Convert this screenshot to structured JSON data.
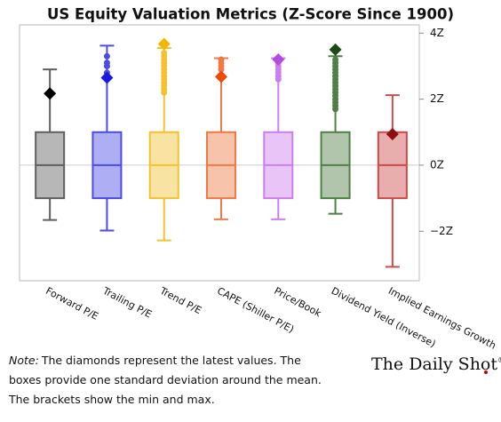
{
  "chart_data": {
    "type": "box",
    "title": "US Equity Valuation Metrics (Z-Score Since 1900)",
    "categories": [
      "Forward P/E",
      "Trailing P/E",
      "Trend P/E",
      "CAPE (Shiller P/E)",
      "Price/Book",
      "Dividend Yield (Inverse)",
      "Implied Earnings Growth"
    ],
    "ylim": [
      -3.5,
      4.25
    ],
    "yticks": [
      {
        "value": 4,
        "label": "4Z"
      },
      {
        "value": 2,
        "label": "2Z"
      },
      {
        "value": 0,
        "label": "0Z"
      },
      {
        "value": -2,
        "label": "−2Z"
      }
    ],
    "zero_line": true,
    "series": [
      {
        "color": "#5f5f5f",
        "min": -1.66,
        "q1": -1,
        "median": 0,
        "q3": 1,
        "max": 2.9,
        "latest": 2.17,
        "outliers": []
      },
      {
        "color": "#4b4be6",
        "min": -1.98,
        "q1": -1,
        "median": 0,
        "q3": 1,
        "max": 3.62,
        "latest": 2.65,
        "outliers": [
          2.8,
          3.0,
          3.1,
          3.3
        ]
      },
      {
        "color": "#f2c230",
        "min": -2.28,
        "q1": -1,
        "median": 0,
        "q3": 1,
        "max": 3.55,
        "latest": 3.67,
        "outliers": [
          2.2,
          2.3,
          2.4,
          2.5,
          2.6,
          2.7,
          2.8,
          2.9,
          3.0,
          3.1,
          3.2,
          3.3,
          3.4
        ]
      },
      {
        "color": "#f07a45",
        "min": -1.64,
        "q1": -1,
        "median": 0,
        "q3": 1,
        "max": 3.24,
        "latest": 2.68,
        "outliers": [
          2.9,
          3.0,
          3.1,
          3.2
        ]
      },
      {
        "color": "#cc7fec",
        "min": -1.64,
        "q1": -1,
        "median": 0,
        "q3": 1,
        "max": 3.24,
        "latest": 3.2,
        "outliers": [
          2.6,
          2.7,
          2.8,
          2.9,
          3.0,
          3.1
        ]
      },
      {
        "color": "#4f7f44",
        "min": -1.47,
        "q1": -1,
        "median": 0,
        "q3": 1,
        "max": 3.3,
        "latest": 3.5,
        "outliers": [
          1.7,
          1.8,
          1.9,
          2.0,
          2.1,
          2.2,
          2.3,
          2.4,
          2.5,
          2.6,
          2.7,
          2.8,
          2.9,
          3.0,
          3.1,
          3.2
        ]
      },
      {
        "color": "#cc4a4a",
        "min": -3.08,
        "q1": -1,
        "median": 0,
        "q3": 1,
        "max": 2.12,
        "latest": 0.94,
        "outliers": []
      }
    ],
    "latest_colors": [
      "#000000",
      "#1a1ae0",
      "#f2b800",
      "#f04a00",
      "#b44ae0",
      "#1e4a16",
      "#8e0f0f"
    ]
  },
  "note": {
    "label": "Note:",
    "lines": [
      "The diamonds represent the latest values. The",
      "boxes provide one standard deviation around the mean.",
      "The brackets show the min and max."
    ]
  },
  "logo": {
    "text": "The Daily Shot",
    "mark": "®"
  }
}
